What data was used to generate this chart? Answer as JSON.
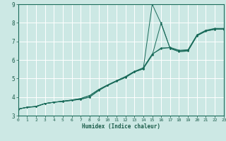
{
  "xlabel": "Humidex (Indice chaleur)",
  "bg_color": "#cce8e4",
  "grid_color": "#ffffff",
  "line_color": "#1a6b5a",
  "x_min": 0,
  "x_max": 23,
  "y_min": 3,
  "y_max": 9,
  "line1_x": [
    0,
    1,
    2,
    3,
    4,
    5,
    6,
    7,
    8,
    9,
    10,
    11,
    12,
    13,
    14,
    15,
    16,
    17,
    18,
    19,
    20,
    21,
    22,
    23
  ],
  "line1_y": [
    3.35,
    3.45,
    3.48,
    3.65,
    3.72,
    3.76,
    3.82,
    3.88,
    4.0,
    4.35,
    4.62,
    4.85,
    5.05,
    5.35,
    5.52,
    9.0,
    7.95,
    6.62,
    6.45,
    6.48,
    7.3,
    7.55,
    7.65,
    7.65
  ],
  "line2_x": [
    0,
    1,
    2,
    3,
    4,
    5,
    6,
    7,
    8,
    9,
    10,
    11,
    12,
    13,
    14,
    15,
    16,
    17,
    18,
    19,
    20,
    21,
    22,
    23
  ],
  "line2_y": [
    3.35,
    3.45,
    3.48,
    3.65,
    3.72,
    3.76,
    3.82,
    3.88,
    4.0,
    4.35,
    4.62,
    4.85,
    5.05,
    5.35,
    5.52,
    6.25,
    8.0,
    6.62,
    6.45,
    6.48,
    7.3,
    7.55,
    7.65,
    7.65
  ],
  "line3_x": [
    0,
    1,
    2,
    3,
    4,
    5,
    6,
    7,
    8,
    9,
    10,
    11,
    12,
    13,
    14,
    15,
    16,
    17,
    18,
    19,
    20,
    21,
    22,
    23
  ],
  "line3_y": [
    3.35,
    3.45,
    3.5,
    3.65,
    3.72,
    3.78,
    3.84,
    3.92,
    4.08,
    4.4,
    4.65,
    4.88,
    5.1,
    5.38,
    5.55,
    6.3,
    6.65,
    6.65,
    6.5,
    6.52,
    7.32,
    7.58,
    7.68,
    7.68
  ],
  "line4_x": [
    0,
    1,
    2,
    3,
    4,
    5,
    6,
    7,
    8,
    9,
    10,
    11,
    12,
    13,
    14,
    15,
    16,
    17,
    18,
    19,
    20,
    21,
    22,
    23
  ],
  "line4_y": [
    3.35,
    3.45,
    3.5,
    3.65,
    3.72,
    3.78,
    3.84,
    3.92,
    4.08,
    4.4,
    4.65,
    4.88,
    5.1,
    5.38,
    5.58,
    6.32,
    6.6,
    6.68,
    6.52,
    6.55,
    7.35,
    7.6,
    7.7,
    7.7
  ]
}
